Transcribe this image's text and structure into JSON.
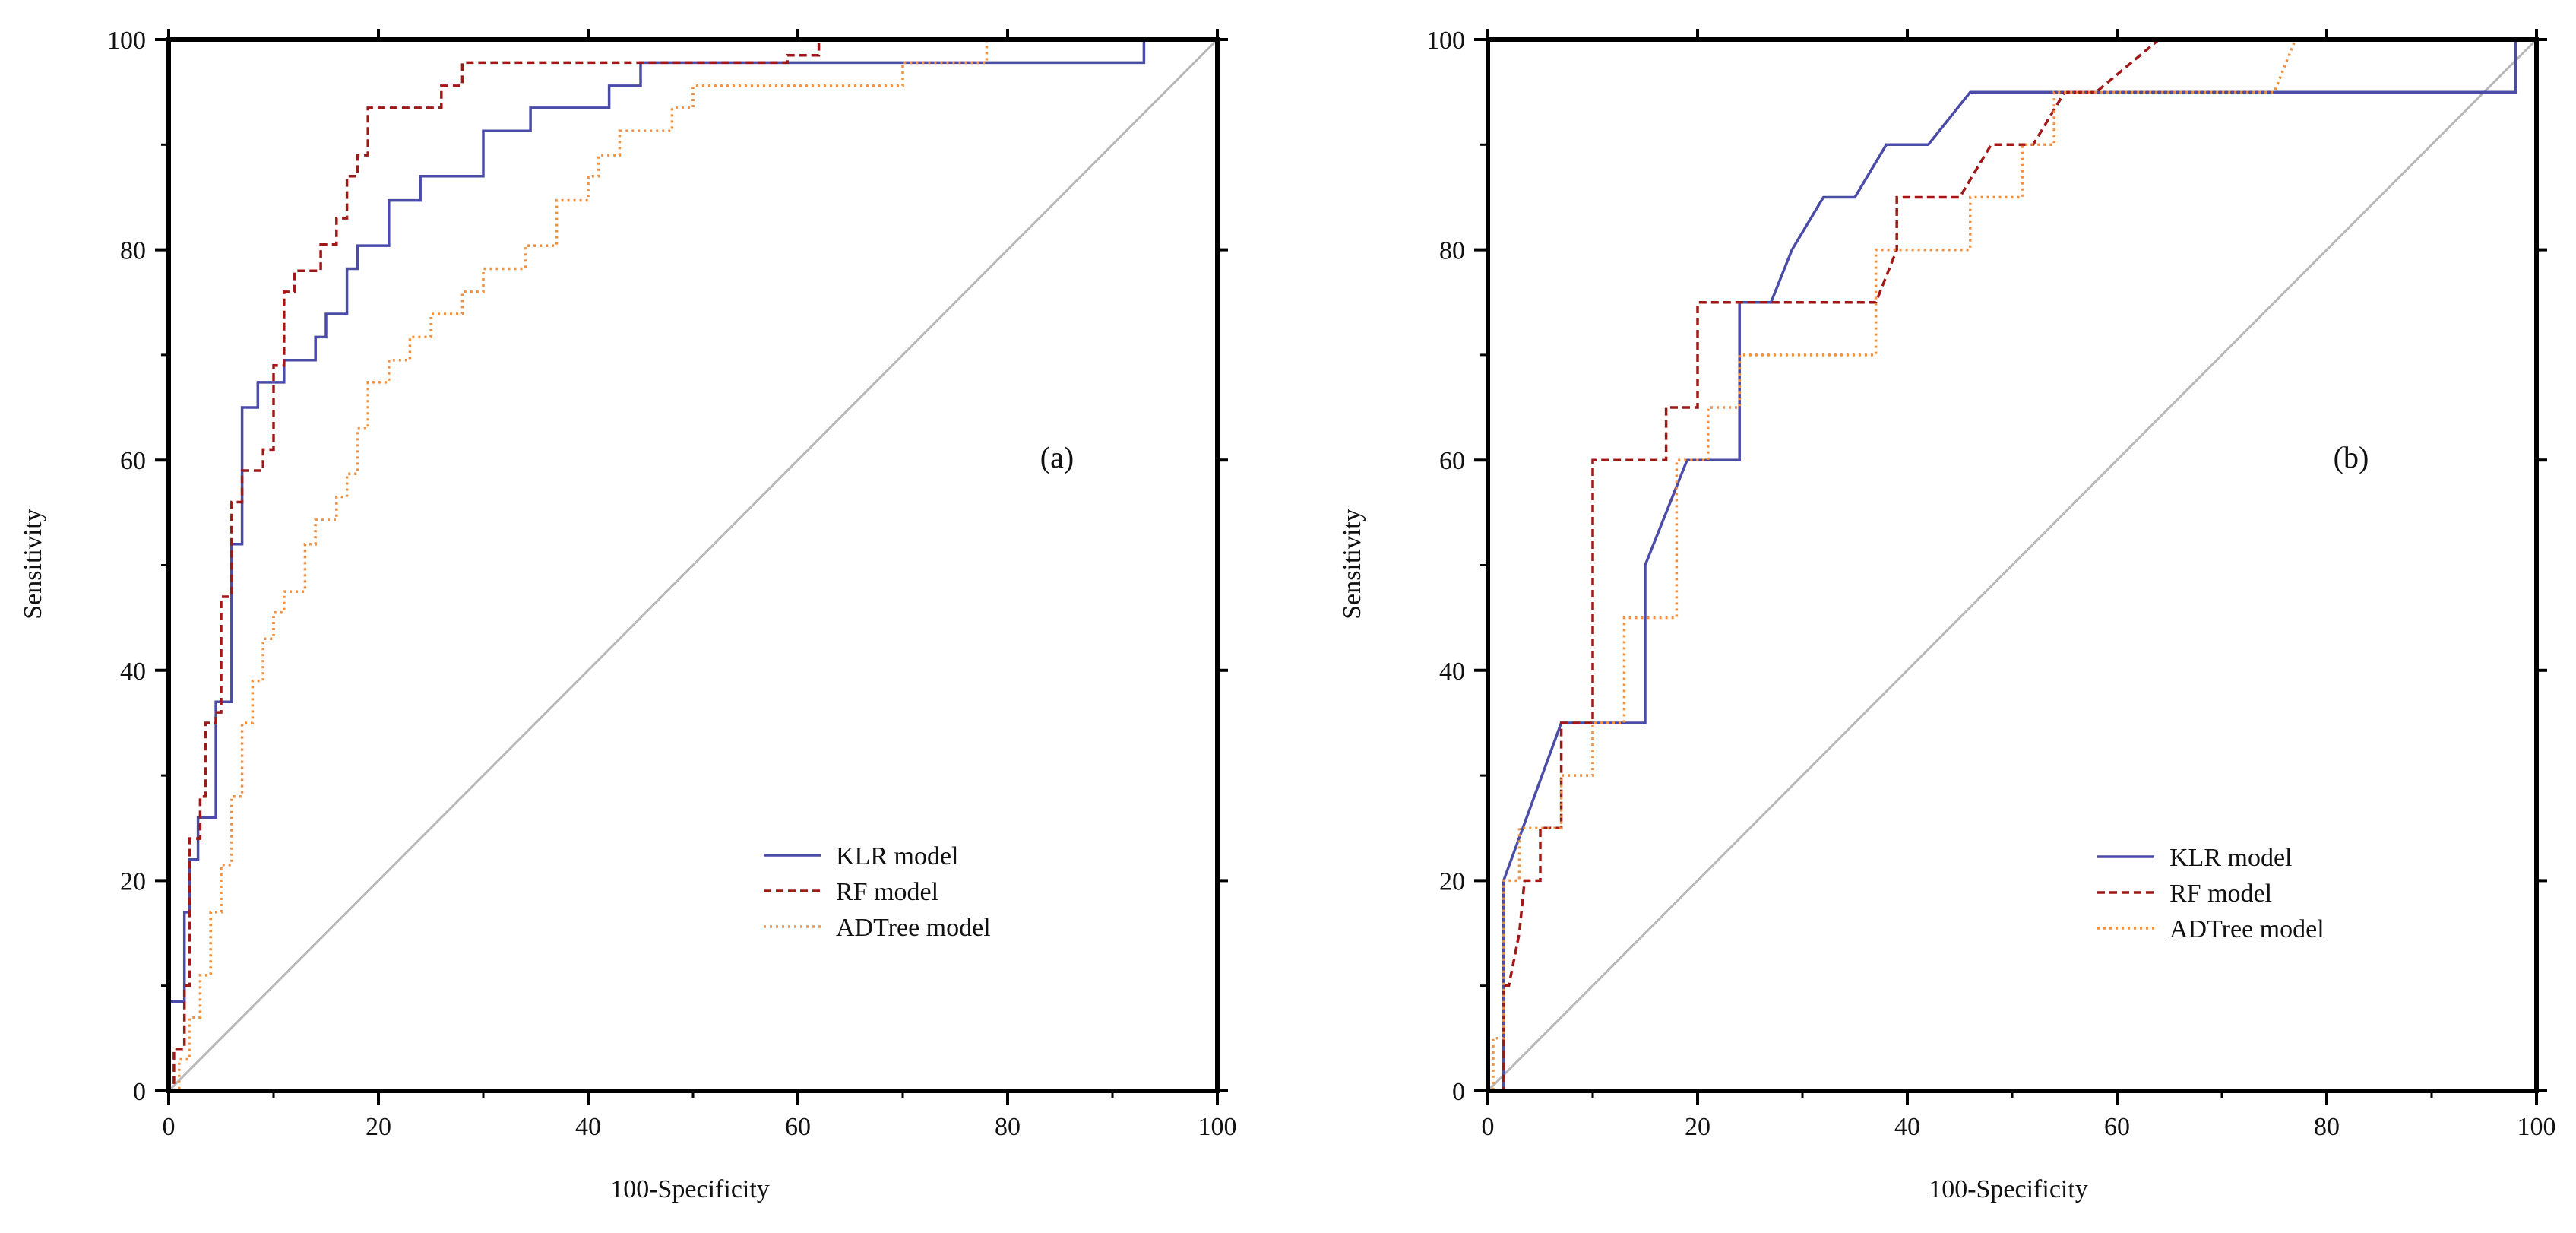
{
  "chart_data": [
    {
      "type": "line",
      "panel_label": "(a)",
      "xlabel": "100-Specificity",
      "ylabel": "Sensitivity",
      "xlim": [
        0,
        100
      ],
      "ylim": [
        0,
        100
      ],
      "x_ticks": [
        "0",
        "20",
        "40",
        "60",
        "80",
        "100"
      ],
      "y_ticks": [
        "0",
        "20",
        "40",
        "60",
        "80",
        "100"
      ],
      "reference_line": "diagonal",
      "legend_position": "lower-right",
      "series": [
        {
          "name": "KLR model",
          "color": "#4b4ba8",
          "dash": "solid",
          "points": [
            [
              0,
              0
            ],
            [
              0,
              8.5
            ],
            [
              1.5,
              8.5
            ],
            [
              1.5,
              17
            ],
            [
              2,
              17
            ],
            [
              2,
              22
            ],
            [
              2.8,
              22
            ],
            [
              2.8,
              26
            ],
            [
              4.5,
              26
            ],
            [
              4.5,
              37
            ],
            [
              6,
              37
            ],
            [
              6,
              52
            ],
            [
              7,
              52
            ],
            [
              7,
              65
            ],
            [
              8.5,
              65
            ],
            [
              8.5,
              67.4
            ],
            [
              11,
              67.4
            ],
            [
              11,
              69.5
            ],
            [
              14,
              69.5
            ],
            [
              14,
              71.7
            ],
            [
              15,
              71.7
            ],
            [
              15,
              73.9
            ],
            [
              17,
              73.9
            ],
            [
              17,
              78.2
            ],
            [
              18,
              78.2
            ],
            [
              18,
              80.4
            ],
            [
              21,
              80.4
            ],
            [
              21,
              84.7
            ],
            [
              24,
              84.7
            ],
            [
              24,
              87
            ],
            [
              30,
              87
            ],
            [
              30,
              91.3
            ],
            [
              34.5,
              91.3
            ],
            [
              34.5,
              93.5
            ],
            [
              42,
              93.5
            ],
            [
              42,
              95.6
            ],
            [
              45,
              95.6
            ],
            [
              45,
              97.8
            ],
            [
              93,
              97.8
            ],
            [
              93,
              100
            ],
            [
              100,
              100
            ]
          ]
        },
        {
          "name": "RF model",
          "color": "#a01818",
          "dash": "dashed",
          "points": [
            [
              0,
              0
            ],
            [
              0.5,
              0
            ],
            [
              0.5,
              4
            ],
            [
              1.5,
              4
            ],
            [
              1.5,
              10
            ],
            [
              2,
              10
            ],
            [
              2,
              24
            ],
            [
              3,
              24
            ],
            [
              3,
              28
            ],
            [
              3.5,
              28
            ],
            [
              3.5,
              35
            ],
            [
              4.5,
              35
            ],
            [
              4.5,
              36
            ],
            [
              5,
              36
            ],
            [
              5,
              47
            ],
            [
              6,
              47
            ],
            [
              6,
              56
            ],
            [
              7,
              56
            ],
            [
              7,
              59
            ],
            [
              9,
              59
            ],
            [
              9,
              61
            ],
            [
              10,
              61
            ],
            [
              10,
              69
            ],
            [
              11,
              69
            ],
            [
              11,
              76
            ],
            [
              12,
              76
            ],
            [
              12,
              78
            ],
            [
              14.5,
              78
            ],
            [
              14.5,
              80.5
            ],
            [
              16,
              80.5
            ],
            [
              16,
              83
            ],
            [
              17,
              83
            ],
            [
              17,
              87
            ],
            [
              18,
              87
            ],
            [
              18,
              89
            ],
            [
              19,
              89
            ],
            [
              19,
              93.5
            ],
            [
              26,
              93.5
            ],
            [
              26,
              95.6
            ],
            [
              28,
              95.6
            ],
            [
              28,
              97.8
            ],
            [
              59,
              97.8
            ],
            [
              59,
              98.5
            ],
            [
              62,
              98.5
            ],
            [
              62,
              100
            ],
            [
              100,
              100
            ]
          ]
        },
        {
          "name": "ADTree model",
          "color": "#f09040",
          "dash": "dotted",
          "points": [
            [
              0,
              0
            ],
            [
              1,
              0
            ],
            [
              1,
              3
            ],
            [
              2,
              3
            ],
            [
              2,
              7
            ],
            [
              3,
              7
            ],
            [
              3,
              11
            ],
            [
              4,
              11
            ],
            [
              4,
              17
            ],
            [
              5,
              17
            ],
            [
              5,
              21.5
            ],
            [
              6,
              21.5
            ],
            [
              6,
              28
            ],
            [
              7,
              28
            ],
            [
              7,
              35
            ],
            [
              8,
              35
            ],
            [
              8,
              39
            ],
            [
              9,
              39
            ],
            [
              9,
              43
            ],
            [
              10,
              43
            ],
            [
              10,
              45.5
            ],
            [
              11,
              45.5
            ],
            [
              11,
              47.5
            ],
            [
              13,
              47.5
            ],
            [
              13,
              52
            ],
            [
              14,
              52
            ],
            [
              14,
              54.3
            ],
            [
              16,
              54.3
            ],
            [
              16,
              56.5
            ],
            [
              17,
              56.5
            ],
            [
              17,
              58.7
            ],
            [
              18,
              58.7
            ],
            [
              18,
              63
            ],
            [
              19,
              63
            ],
            [
              19,
              67.4
            ],
            [
              21,
              67.4
            ],
            [
              21,
              69.5
            ],
            [
              23,
              69.5
            ],
            [
              23,
              71.7
            ],
            [
              25,
              71.7
            ],
            [
              25,
              73.9
            ],
            [
              28,
              73.9
            ],
            [
              28,
              76
            ],
            [
              30,
              76
            ],
            [
              30,
              78.2
            ],
            [
              34,
              78.2
            ],
            [
              34,
              80.4
            ],
            [
              37,
              80.4
            ],
            [
              37,
              84.7
            ],
            [
              40,
              84.7
            ],
            [
              40,
              87
            ],
            [
              41,
              87
            ],
            [
              41,
              89
            ],
            [
              43,
              89
            ],
            [
              43,
              91.3
            ],
            [
              48,
              91.3
            ],
            [
              48,
              93.5
            ],
            [
              50,
              93.5
            ],
            [
              50,
              95.6
            ],
            [
              70,
              95.6
            ],
            [
              70,
              97.8
            ],
            [
              78,
              97.8
            ],
            [
              78,
              100
            ],
            [
              100,
              100
            ]
          ]
        }
      ]
    },
    {
      "type": "line",
      "panel_label": "(b)",
      "xlabel": "100-Specificity",
      "ylabel": "Sensitivity",
      "xlim": [
        0,
        100
      ],
      "ylim": [
        0,
        100
      ],
      "x_ticks": [
        "0",
        "20",
        "40",
        "60",
        "80",
        "100"
      ],
      "y_ticks": [
        "0",
        "20",
        "40",
        "60",
        "80",
        "100"
      ],
      "reference_line": "diagonal",
      "legend_position": "lower-right",
      "series": [
        {
          "name": "KLR model",
          "color": "#4b4ba8",
          "dash": "solid",
          "points": [
            [
              0,
              0
            ],
            [
              1.5,
              0
            ],
            [
              1.5,
              20
            ],
            [
              7,
              35
            ],
            [
              15,
              35
            ],
            [
              15,
              50
            ],
            [
              19,
              60
            ],
            [
              24,
              60
            ],
            [
              24,
              75
            ],
            [
              27,
              75
            ],
            [
              29,
              80
            ],
            [
              32,
              85
            ],
            [
              35,
              85
            ],
            [
              38,
              90
            ],
            [
              42,
              90
            ],
            [
              46,
              95
            ],
            [
              98,
              95
            ],
            [
              98,
              100
            ],
            [
              100,
              100
            ]
          ]
        },
        {
          "name": "RF model",
          "color": "#a01818",
          "dash": "dashed",
          "points": [
            [
              0,
              0
            ],
            [
              1.5,
              0
            ],
            [
              1.5,
              10
            ],
            [
              2,
              10
            ],
            [
              3,
              15
            ],
            [
              3.5,
              20
            ],
            [
              5,
              20
            ],
            [
              5,
              25
            ],
            [
              7,
              25
            ],
            [
              7,
              35
            ],
            [
              10,
              35
            ],
            [
              10,
              60
            ],
            [
              17,
              60
            ],
            [
              17,
              65
            ],
            [
              20,
              65
            ],
            [
              20,
              75
            ],
            [
              37,
              75
            ],
            [
              39,
              80
            ],
            [
              39,
              85
            ],
            [
              45,
              85
            ],
            [
              48,
              90
            ],
            [
              52,
              90
            ],
            [
              55,
              95
            ],
            [
              58,
              95
            ],
            [
              64,
              100
            ],
            [
              100,
              100
            ]
          ]
        },
        {
          "name": "ADTree model",
          "color": "#f09040",
          "dash": "dotted",
          "points": [
            [
              0,
              0
            ],
            [
              0.5,
              0
            ],
            [
              0.5,
              5
            ],
            [
              1.5,
              5
            ],
            [
              1.5,
              20
            ],
            [
              3,
              20
            ],
            [
              3,
              25
            ],
            [
              7,
              25
            ],
            [
              7,
              30
            ],
            [
              10,
              30
            ],
            [
              10,
              35
            ],
            [
              13,
              35
            ],
            [
              13,
              45
            ],
            [
              18,
              45
            ],
            [
              18,
              60
            ],
            [
              21,
              60
            ],
            [
              21,
              65
            ],
            [
              24,
              65
            ],
            [
              24,
              70
            ],
            [
              37,
              70
            ],
            [
              37,
              80
            ],
            [
              46,
              80
            ],
            [
              46,
              85
            ],
            [
              51,
              85
            ],
            [
              51,
              90
            ],
            [
              54,
              90
            ],
            [
              54,
              95
            ],
            [
              75,
              95
            ],
            [
              77,
              100
            ],
            [
              100,
              100
            ]
          ]
        }
      ]
    }
  ]
}
